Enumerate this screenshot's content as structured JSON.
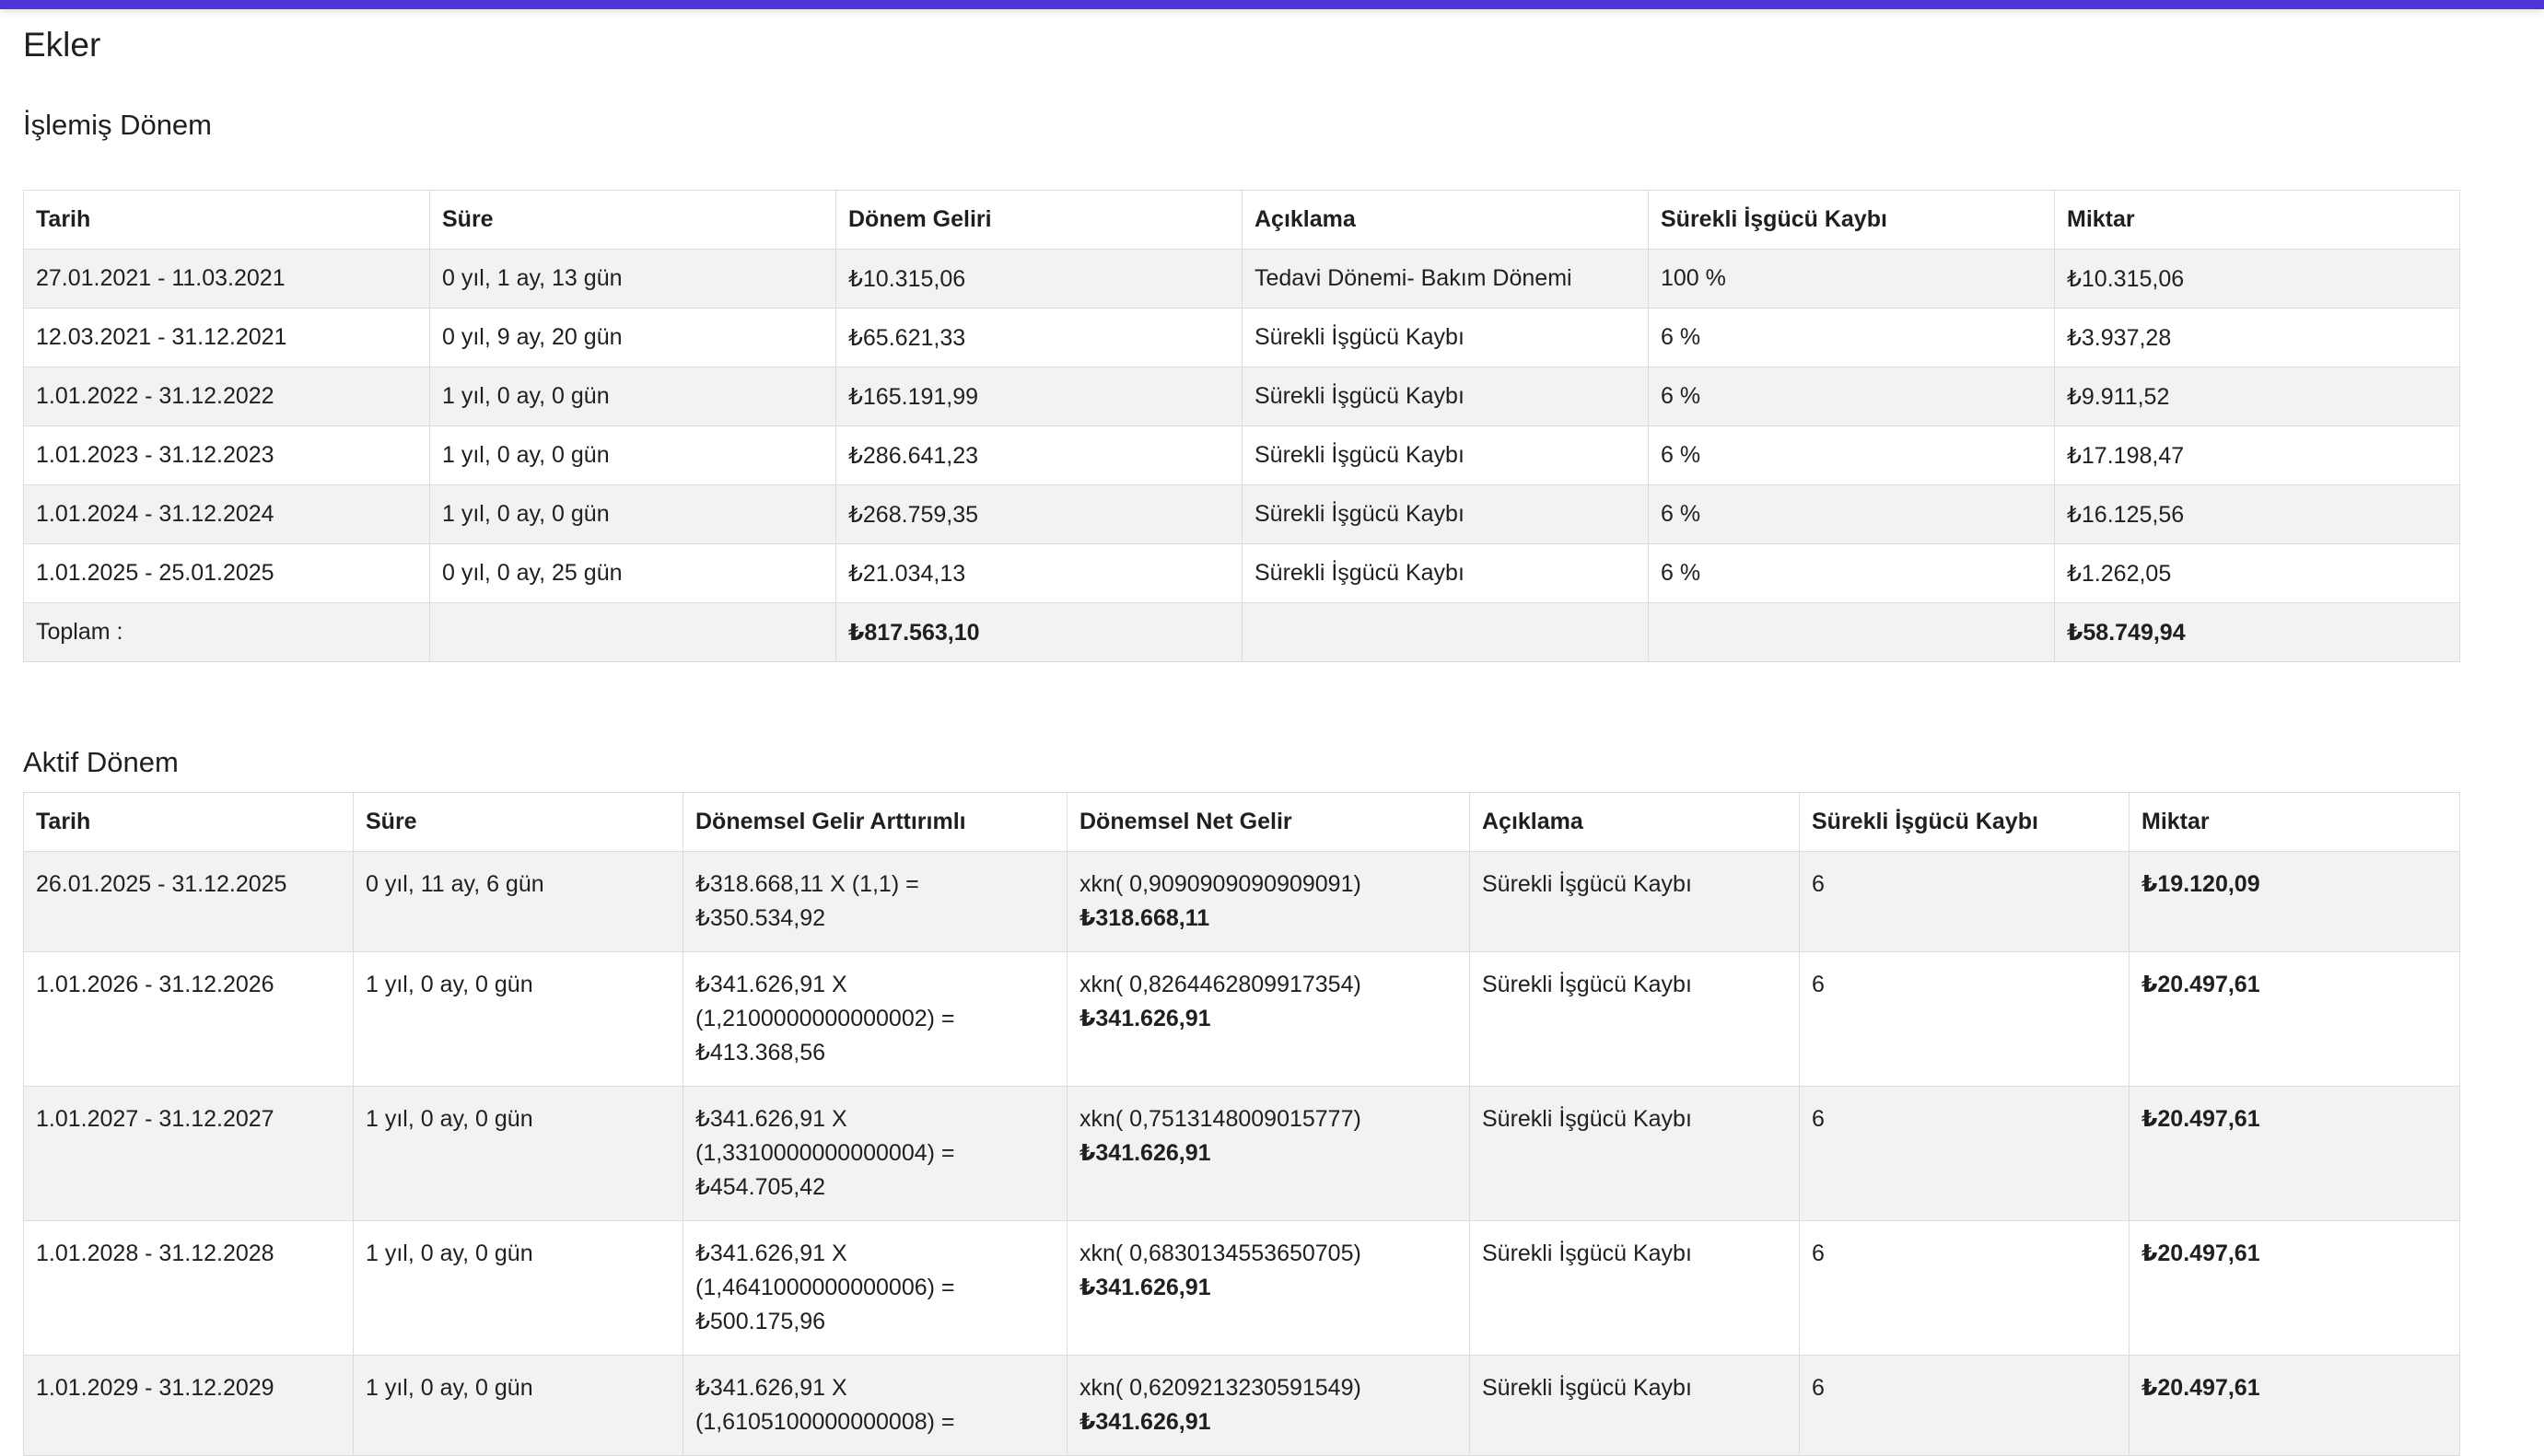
{
  "page": {
    "title": "Ekler"
  },
  "colors": {
    "topbar": "#4f34d8",
    "row_alt": "#f2f2f2",
    "border": "#dcdcdc"
  },
  "islemis": {
    "title": "İşlemiş Dönem",
    "headers": [
      "Tarih",
      "Süre",
      "Dönem Geliri",
      "Açıklama",
      "Sürekli İşgücü Kaybı",
      "Miktar"
    ],
    "rows": [
      [
        "27.01.2021 - 11.03.2021",
        "0 yıl, 1 ay, 13 gün",
        "₺10.315,06",
        "Tedavi Dönemi- Bakım Dönemi",
        "100 %",
        "₺10.315,06"
      ],
      [
        "12.03.2021 - 31.12.2021",
        "0 yıl, 9 ay, 20 gün",
        "₺65.621,33",
        "Sürekli İşgücü Kaybı",
        "6 %",
        "₺3.937,28"
      ],
      [
        "1.01.2022 - 31.12.2022",
        "1 yıl, 0 ay, 0 gün",
        "₺165.191,99",
        "Sürekli İşgücü Kaybı",
        "6 %",
        "₺9.911,52"
      ],
      [
        "1.01.2023 - 31.12.2023",
        "1 yıl, 0 ay, 0 gün",
        "₺286.641,23",
        "Sürekli İşgücü Kaybı",
        "6 %",
        "₺17.198,47"
      ],
      [
        "1.01.2024 - 31.12.2024",
        "1 yıl, 0 ay, 0 gün",
        "₺268.759,35",
        "Sürekli İşgücü Kaybı",
        "6 %",
        "₺16.125,56"
      ],
      [
        "1.01.2025 - 25.01.2025",
        "0 yıl, 0 ay, 25 gün",
        "₺21.034,13",
        "Sürekli İşgücü Kaybı",
        "6 %",
        "₺1.262,05"
      ]
    ],
    "total": {
      "label": "Toplam :",
      "donem_geliri": "₺817.563,10",
      "miktar": "₺58.749,94"
    }
  },
  "aktif": {
    "title": "Aktif Dönem",
    "headers": [
      "Tarih",
      "Süre",
      "Dönemsel Gelir Arttırımlı",
      "Dönemsel Net Gelir",
      "Açıklama",
      "Sürekli İşgücü Kaybı",
      "Miktar"
    ],
    "rows": [
      {
        "tarih": "26.01.2025 - 31.12.2025",
        "sure": "0 yıl, 11 ay, 6 gün",
        "gelir_lines": [
          "₺318.668,11 X (1,1) = ₺350.534,92"
        ],
        "net_formula": "xkn( 0,9090909090909091)",
        "net_value": "₺318.668,11",
        "aciklama": "Sürekli İşgücü Kaybı",
        "kayip": "6",
        "miktar": "₺19.120,09"
      },
      {
        "tarih": "1.01.2026 - 31.12.2026",
        "sure": "1 yıl, 0 ay, 0 gün",
        "gelir_lines": [
          "₺341.626,91 X",
          "(1,2100000000000002) =",
          "₺413.368,56"
        ],
        "net_formula": "xkn( 0,8264462809917354)",
        "net_value": "₺341.626,91",
        "aciklama": "Sürekli İşgücü Kaybı",
        "kayip": "6",
        "miktar": "₺20.497,61"
      },
      {
        "tarih": "1.01.2027 - 31.12.2027",
        "sure": "1 yıl, 0 ay, 0 gün",
        "gelir_lines": [
          "₺341.626,91 X",
          "(1,3310000000000004) =",
          "₺454.705,42"
        ],
        "net_formula": "xkn( 0,7513148009015777)",
        "net_value": "₺341.626,91",
        "aciklama": "Sürekli İşgücü Kaybı",
        "kayip": "6",
        "miktar": "₺20.497,61"
      },
      {
        "tarih": "1.01.2028 - 31.12.2028",
        "sure": "1 yıl, 0 ay, 0 gün",
        "gelir_lines": [
          "₺341.626,91 X",
          "(1,4641000000000006) =",
          "₺500.175,96"
        ],
        "net_formula": "xkn( 0,6830134553650705)",
        "net_value": "₺341.626,91",
        "aciklama": "Sürekli İşgücü Kaybı",
        "kayip": "6",
        "miktar": "₺20.497,61"
      },
      {
        "tarih": "1.01.2029 - 31.12.2029",
        "sure": "1 yıl, 0 ay, 0 gün",
        "gelir_lines": [
          "₺341.626,91 X",
          "(1,6105100000000008) ="
        ],
        "net_formula": "xkn( 0,6209213230591549)",
        "net_value": "₺341.626,91",
        "aciklama": "Sürekli İşgücü Kaybı",
        "kayip": "6",
        "miktar": "₺20.497,61"
      }
    ]
  }
}
